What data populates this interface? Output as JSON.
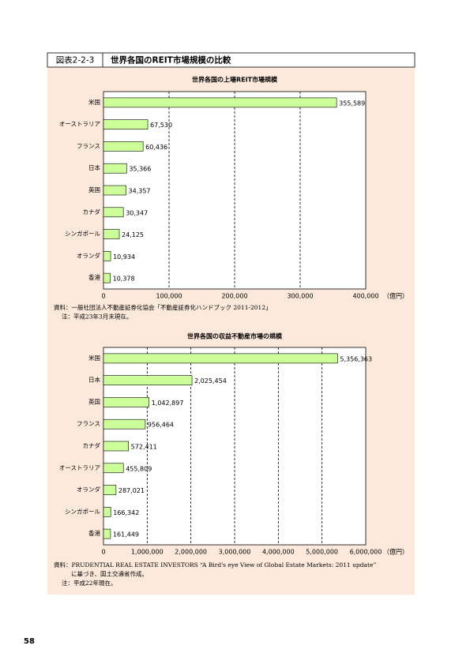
{
  "header": {
    "label": "図表2-2-3",
    "title": "世界各国のREIT市場規模の比較"
  },
  "page_number": "58",
  "chart_data": [
    {
      "type": "bar",
      "orientation": "horizontal",
      "title": "世界各国の上場REIT市場規模",
      "categories": [
        "米国",
        "オーストラリア",
        "フランス",
        "日本",
        "英国",
        "カナダ",
        "シンガポール",
        "オランダ",
        "香港"
      ],
      "values": [
        355589,
        67530,
        60436,
        35366,
        34357,
        30347,
        24125,
        10934,
        10378
      ],
      "value_labels": [
        "355,589",
        "67,530",
        "60,436",
        "35,366",
        "34,357",
        "30,347",
        "24,125",
        "10,934",
        "10,378"
      ],
      "color": "#ccff99",
      "xlim": [
        0,
        400000
      ],
      "xticks": [
        0,
        {
          "value": 100000,
          "label": "100,000"
        },
        {
          "value": 200000,
          "label": "200,000"
        },
        {
          "value": 300000,
          "label": "300,000"
        },
        {
          "value": 400000,
          "label": "400,000"
        }
      ],
      "x_unit": "（億円）",
      "grid": true,
      "notes": [
        "資料：一般社団法人不動産証券化協会「不動産証券化ハンドブック 2011-2012」",
        "注：平成23年3月末現在。"
      ]
    },
    {
      "type": "bar",
      "orientation": "horizontal",
      "title": "世界各国の収益不動産市場の規模",
      "categories": [
        "米国",
        "日本",
        "英国",
        "フランス",
        "カナダ",
        "オーストラリア",
        "オランダ",
        "シンガポール",
        "香港"
      ],
      "values": [
        5356363,
        2025454,
        1042897,
        956464,
        572411,
        455809,
        287021,
        166342,
        161449
      ],
      "value_labels": [
        "5,356,363",
        "2,025,454",
        "1,042,897",
        "956,464",
        "572,411",
        "455,809",
        "287,021",
        "166,342",
        "161,449"
      ],
      "color": "#ccff99",
      "xlim": [
        0,
        6000000
      ],
      "xticks": [
        0,
        {
          "value": 1000000,
          "label": "1,000,000"
        },
        {
          "value": 2000000,
          "label": "2,000,000"
        },
        {
          "value": 3000000,
          "label": "3,000,000"
        },
        {
          "value": 4000000,
          "label": "4,000,000"
        },
        {
          "value": 5000000,
          "label": "5,000,000"
        },
        {
          "value": 6000000,
          "label": "6,000,000"
        }
      ],
      "x_unit": "（億円）",
      "grid": true,
      "notes": [
        "資料：PRUDENTIAL REAL ESTATE INVESTORS “A Bird's eye View of Global Estate Markets: 2011 update”",
        "に基づき、国土交通省作成。",
        "注：平成22年現在。"
      ]
    }
  ]
}
